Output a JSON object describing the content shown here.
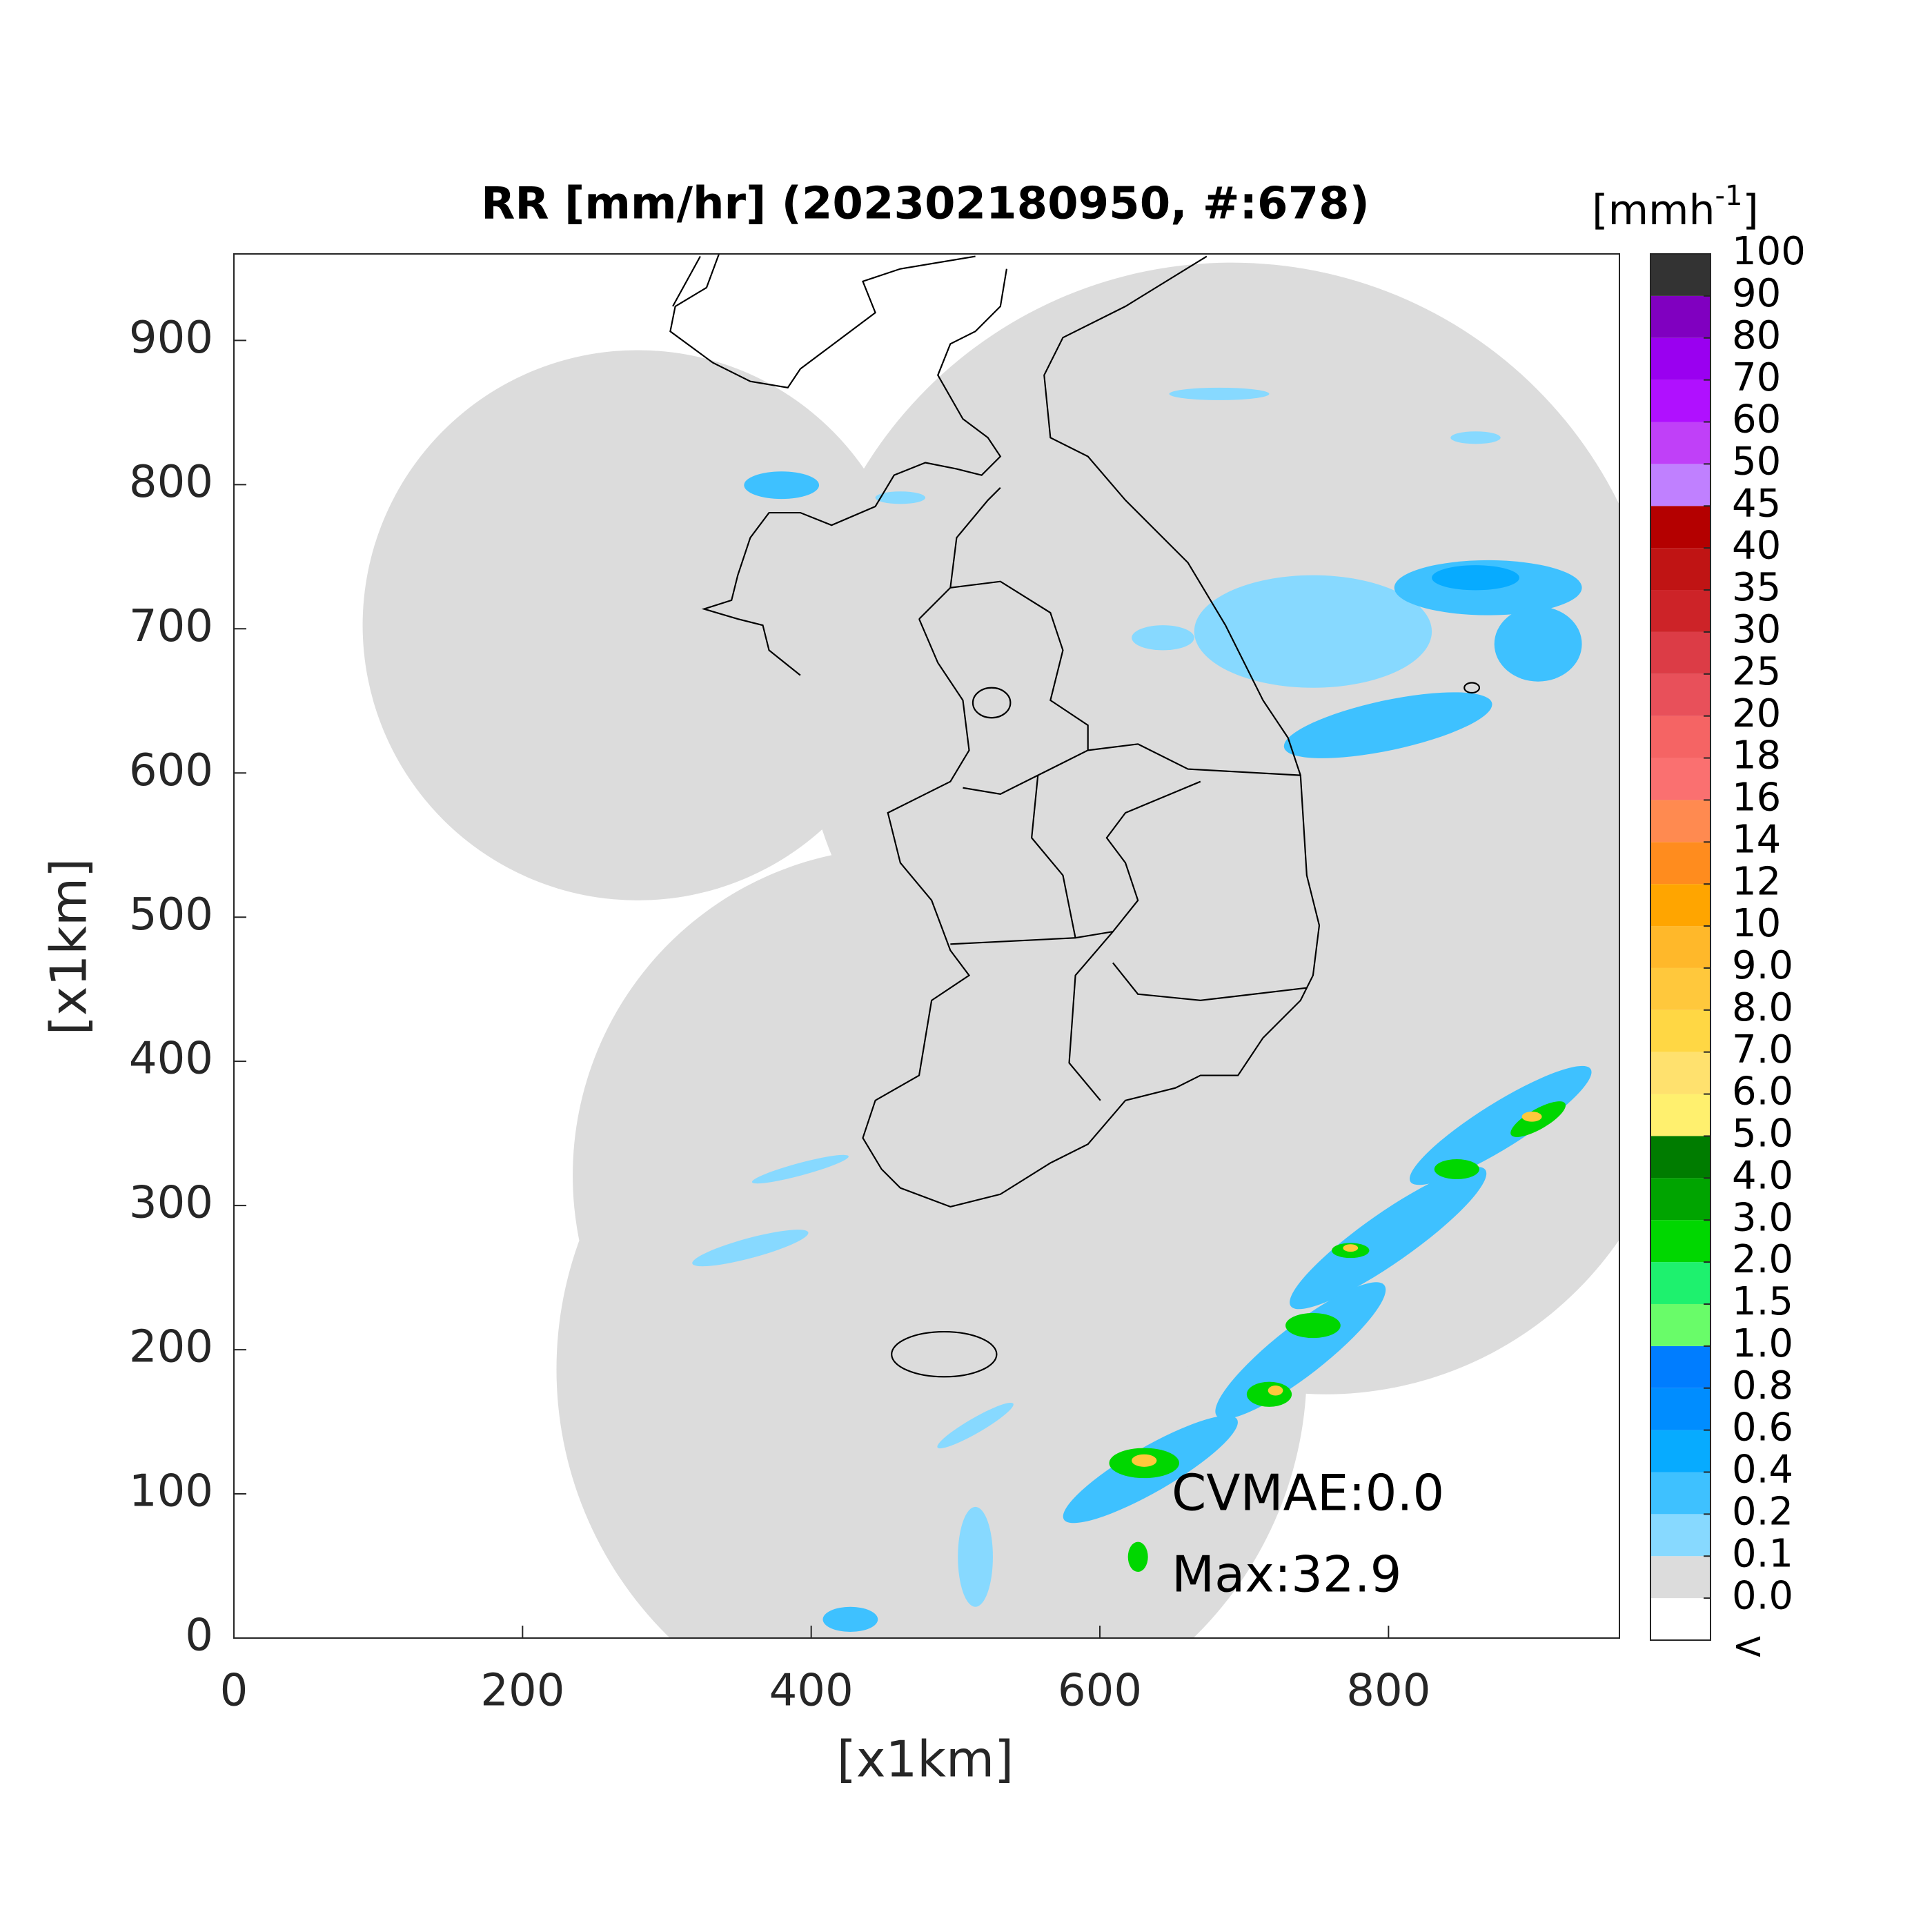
{
  "chart_data": {
    "type": "map",
    "title": "RR [mm/hr] (202302180950, #:678)",
    "x_label": "[x1km]",
    "y_label": "[x1km]",
    "xlim": [
      0,
      960
    ],
    "ylim": [
      0,
      960
    ],
    "xticks": [
      0,
      200,
      400,
      600,
      800
    ],
    "yticks": [
      0,
      100,
      200,
      300,
      400,
      500,
      600,
      700,
      800,
      900
    ],
    "annotations": [
      "CVMAE:0.0",
      "Max:32.9"
    ],
    "colorbar": {
      "unit": "[mmh",
      "unit_exponent": "-1",
      "unit_close": "]",
      "under_label": "<",
      "ticks": [
        {
          "value": 0,
          "label": "0.0"
        },
        0.1,
        0.2,
        0.4,
        0.6,
        0.8,
        {
          "value": 1,
          "label": "1.0"
        },
        1.5,
        {
          "value": 2,
          "label": "2.0"
        },
        {
          "value": 3,
          "label": "3.0"
        },
        {
          "value": 4,
          "label": "4.0"
        },
        {
          "value": 5,
          "label": "5.0"
        },
        {
          "value": 6,
          "label": "6.0"
        },
        {
          "value": 7,
          "label": "7.0"
        },
        {
          "value": 8,
          "label": "8.0"
        },
        {
          "value": 9,
          "label": "9.0"
        },
        10,
        12,
        14,
        16,
        18,
        20,
        25,
        30,
        35,
        40,
        45,
        50,
        60,
        70,
        80,
        90,
        100
      ],
      "colors": [
        "#ffffff",
        "#dcdcdc",
        "#87d9ff",
        "#3ec1ff",
        "#07abff",
        "#008dff",
        "#007dff",
        "#69fc69",
        "#1ef16e",
        "#00d700",
        "#00a400",
        "#007c00",
        "#fff06e",
        "#ffe16e",
        "#ffd744",
        "#ffc83c",
        "#ffb82a",
        "#ffa500",
        "#ff8c1e",
        "#ff8a50",
        "#fa7070",
        "#f56464",
        "#e8505a",
        "#dc3c46",
        "#cd2328",
        "#c01414",
        "#b40000",
        "#c080ff",
        "#c040f8",
        "#b010ff",
        "#9a00f0",
        "#8000c0",
        "#333333"
      ]
    }
  }
}
